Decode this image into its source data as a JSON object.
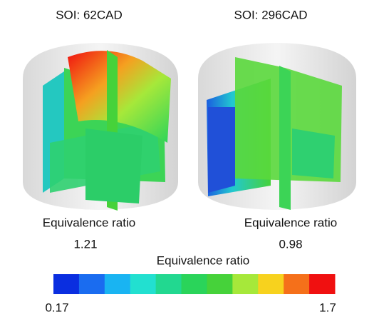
{
  "panels": [
    {
      "title": "SOI: 62CAD",
      "caption": "Equivalence ratio",
      "value": 1.21
    },
    {
      "title": "SOI: 296CAD",
      "caption": "Equivalence ratio",
      "value": 0.98
    }
  ],
  "colorbar": {
    "title": "Equivalence ratio",
    "min": 0.17,
    "max": 1.7,
    "colors": [
      "#0a2ee0",
      "#1a6cf0",
      "#19b4f2",
      "#22e0d0",
      "#22d890",
      "#2ad45a",
      "#46d23a",
      "#a6e83a",
      "#f7d21e",
      "#f5701a",
      "#f01010"
    ]
  }
}
